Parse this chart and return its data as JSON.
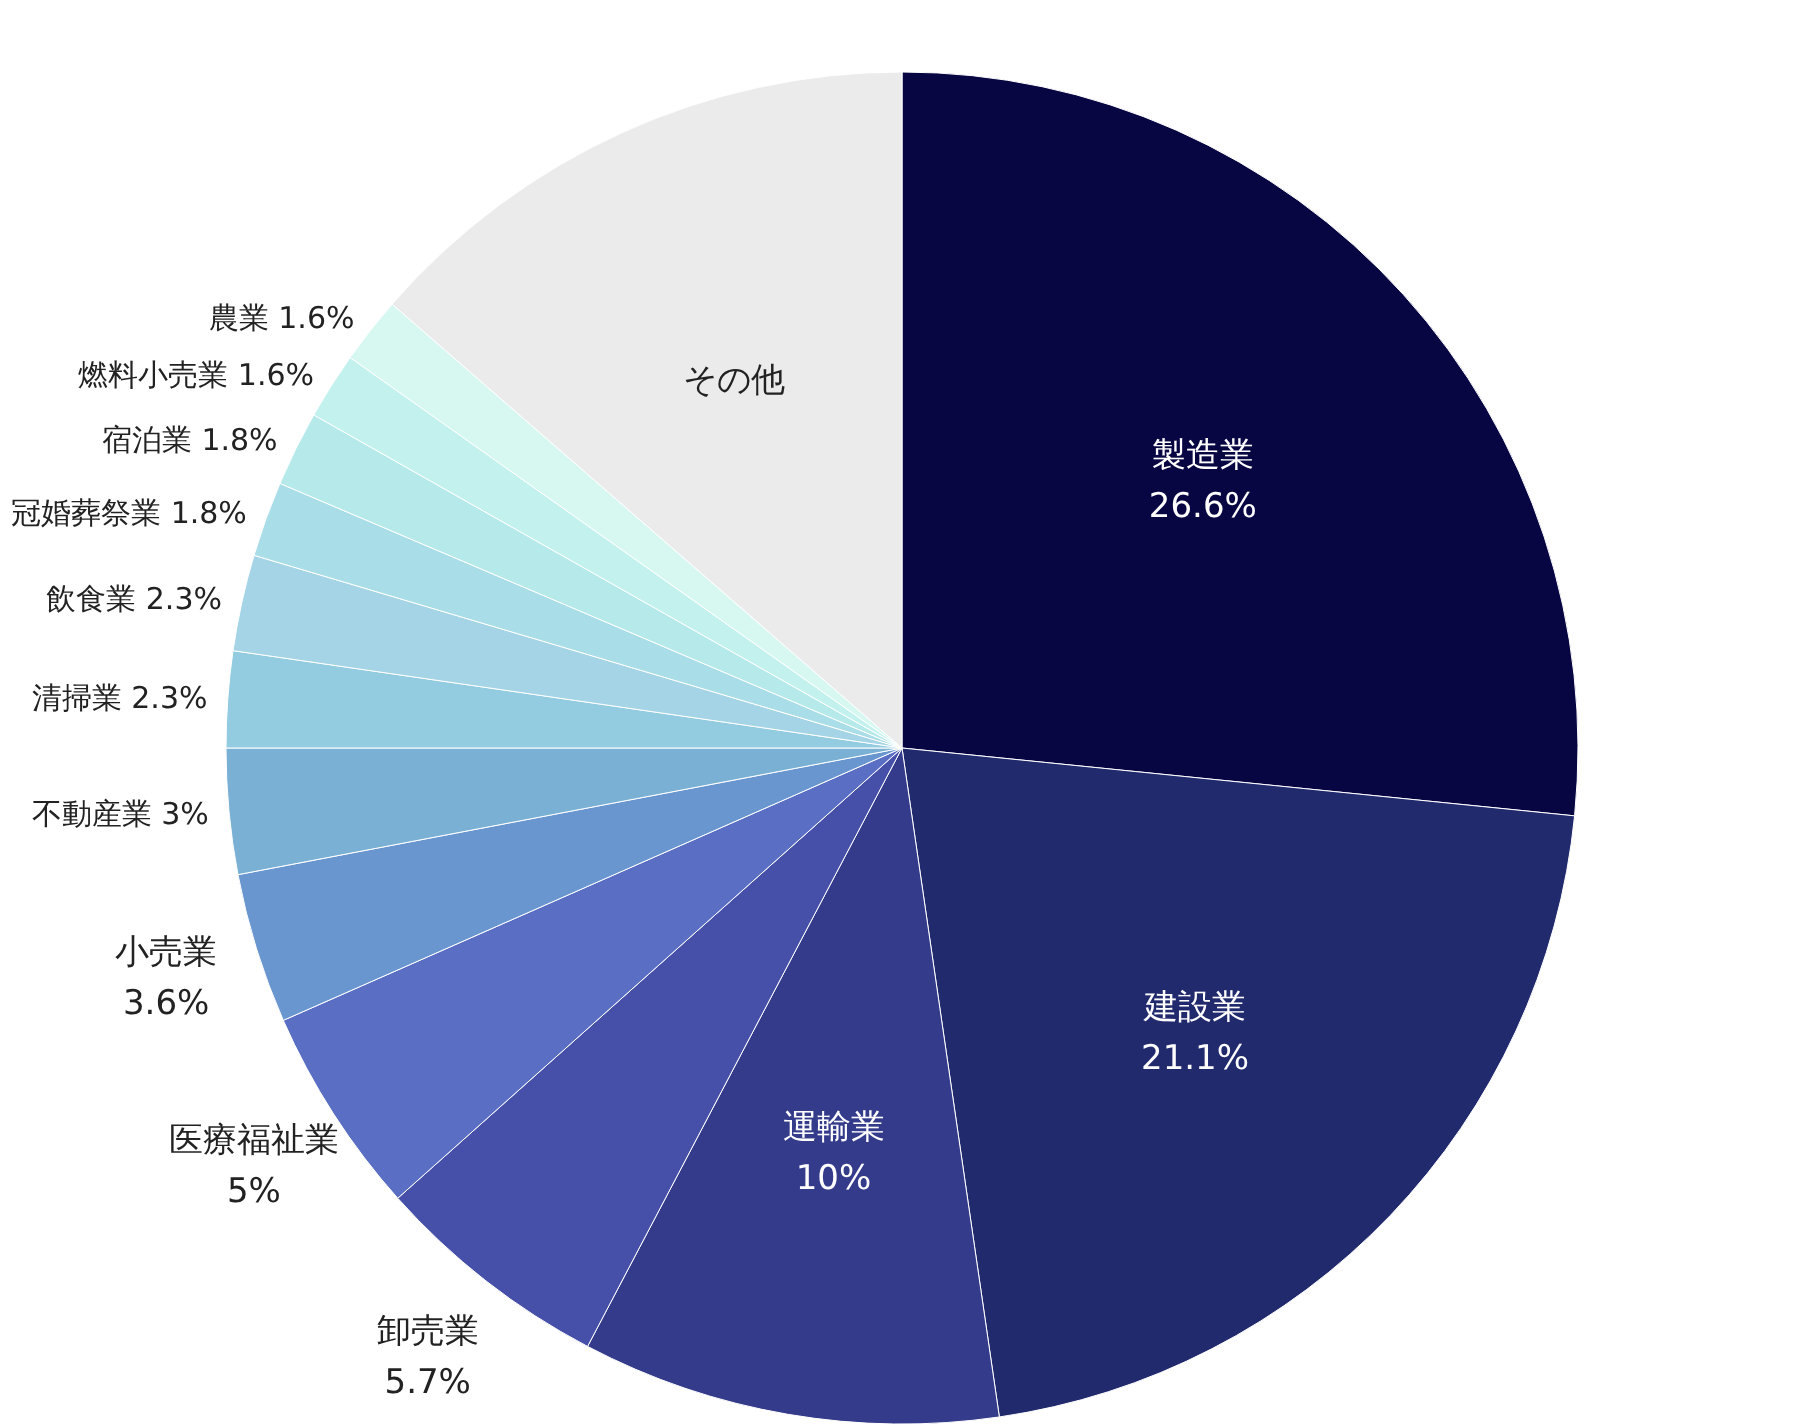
{
  "chart_data": {
    "type": "pie",
    "categories": [
      "製造業",
      "建設業",
      "運輸業",
      "卸売業",
      "医療福祉業",
      "小売業",
      "不動産業",
      "清掃業",
      "飲食業",
      "冠婚葬祭業",
      "宿泊業",
      "燃料小売業",
      "農業",
      "その他"
    ],
    "values": [
      26.6,
      21.1,
      10,
      5.7,
      5,
      3.6,
      3,
      2.3,
      2.3,
      1.8,
      1.8,
      1.6,
      1.6,
      13.6
    ],
    "value_labels": [
      "26.6%",
      "21.1%",
      "10%",
      "5.7%",
      "5%",
      "3.6%",
      "3%",
      "2.3%",
      "2.3%",
      "1.8%",
      "1.8%",
      "1.6%",
      "1.6%",
      null
    ],
    "colors": [
      "#070642",
      "#222a6e",
      "#343b8a",
      "#4650a8",
      "#5a6fc4",
      "#6a96d0",
      "#79b0d4",
      "#93cbe0",
      "#a5d4e6",
      "#a9dde8",
      "#b6e9ea",
      "#c3f2ee",
      "#d6f8f1",
      "#ebebeb"
    ]
  }
}
